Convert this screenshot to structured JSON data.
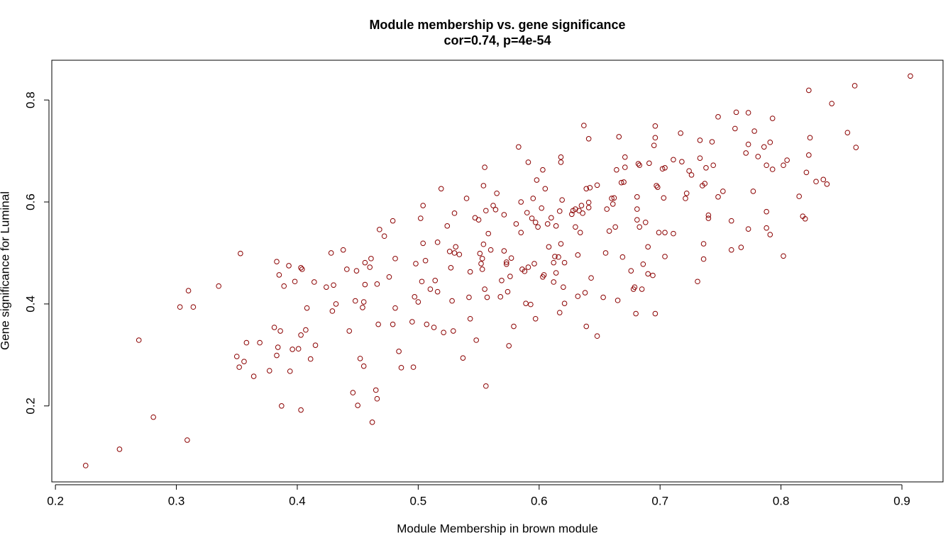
{
  "chart_data": {
    "type": "scatter",
    "title": "Module membership vs. gene significance",
    "subtitle": "cor=0.74, p=4e-54",
    "x_label": "Module Membership in brown module",
    "y_label": "Gene significance for Luminal",
    "color": "#8b0000",
    "xlim": [
      0.197,
      0.934
    ],
    "ylim": [
      0.051,
      0.878
    ],
    "xticks": [
      0.2,
      0.3,
      0.4,
      0.5,
      0.6,
      0.7,
      0.8,
      0.9
    ],
    "yticks": [
      0.2,
      0.4,
      0.6,
      0.8
    ],
    "x": [
      0.225,
      0.253,
      0.269,
      0.281,
      0.303,
      0.309,
      0.31,
      0.314,
      0.335,
      0.35,
      0.352,
      0.353,
      0.356,
      0.358,
      0.364,
      0.369,
      0.377,
      0.381,
      0.383,
      0.383,
      0.384,
      0.385,
      0.386,
      0.387,
      0.389,
      0.393,
      0.394,
      0.396,
      0.398,
      0.401,
      0.403,
      0.403,
      0.403,
      0.404,
      0.407,
      0.408,
      0.411,
      0.414,
      0.415,
      0.424,
      0.428,
      0.429,
      0.43,
      0.432,
      0.438,
      0.441,
      0.443,
      0.446,
      0.448,
      0.449,
      0.45,
      0.452,
      0.454,
      0.455,
      0.455,
      0.456,
      0.456,
      0.46,
      0.461,
      0.462,
      0.465,
      0.466,
      0.466,
      0.467,
      0.468,
      0.472,
      0.476,
      0.479,
      0.479,
      0.481,
      0.481,
      0.484,
      0.486,
      0.495,
      0.496,
      0.497,
      0.498,
      0.5,
      0.502,
      0.503,
      0.504,
      0.504,
      0.506,
      0.507,
      0.51,
      0.513,
      0.514,
      0.516,
      0.516,
      0.519,
      0.521,
      0.524,
      0.526,
      0.527,
      0.528,
      0.529,
      0.53,
      0.53,
      0.531,
      0.534,
      0.537,
      0.54,
      0.542,
      0.543,
      0.543,
      0.547,
      0.548,
      0.55,
      0.551,
      0.552,
      0.553,
      0.553,
      0.554,
      0.554,
      0.555,
      0.555,
      0.556,
      0.556,
      0.557,
      0.558,
      0.56,
      0.562,
      0.564,
      0.565,
      0.568,
      0.569,
      0.571,
      0.571,
      0.573,
      0.573,
      0.574,
      0.575,
      0.576,
      0.577,
      0.579,
      0.581,
      0.583,
      0.585,
      0.585,
      0.586,
      0.588,
      0.589,
      0.59,
      0.591,
      0.591,
      0.593,
      0.594,
      0.595,
      0.596,
      0.597,
      0.597,
      0.598,
      0.599,
      0.602,
      0.603,
      0.603,
      0.604,
      0.605,
      0.607,
      0.608,
      0.61,
      0.612,
      0.612,
      0.613,
      0.614,
      0.614,
      0.616,
      0.617,
      0.617,
      0.618,
      0.618,
      0.618,
      0.619,
      0.62,
      0.621,
      0.621,
      0.627,
      0.628,
      0.63,
      0.63,
      0.632,
      0.632,
      0.633,
      0.634,
      0.635,
      0.636,
      0.637,
      0.638,
      0.639,
      0.639,
      0.641,
      0.641,
      0.641,
      0.642,
      0.643,
      0.648,
      0.648,
      0.653,
      0.655,
      0.656,
      0.658,
      0.66,
      0.661,
      0.662,
      0.663,
      0.664,
      0.665,
      0.666,
      0.668,
      0.669,
      0.67,
      0.671,
      0.671,
      0.676,
      0.678,
      0.679,
      0.68,
      0.681,
      0.681,
      0.681,
      0.682,
      0.683,
      0.683,
      0.685,
      0.686,
      0.688,
      0.69,
      0.69,
      0.691,
      0.694,
      0.695,
      0.696,
      0.696,
      0.696,
      0.697,
      0.698,
      0.699,
      0.702,
      0.703,
      0.704,
      0.704,
      0.704,
      0.711,
      0.711,
      0.717,
      0.718,
      0.721,
      0.722,
      0.724,
      0.726,
      0.731,
      0.733,
      0.733,
      0.735,
      0.736,
      0.736,
      0.737,
      0.738,
      0.74,
      0.74,
      0.743,
      0.744,
      0.748,
      0.748,
      0.752,
      0.759,
      0.759,
      0.762,
      0.763,
      0.767,
      0.771,
      0.773,
      0.773,
      0.773,
      0.777,
      0.778,
      0.781,
      0.786,
      0.788,
      0.788,
      0.788,
      0.791,
      0.791,
      0.793,
      0.793,
      0.802,
      0.802,
      0.805,
      0.815,
      0.818,
      0.82,
      0.821,
      0.823,
      0.823,
      0.824,
      0.829,
      0.835,
      0.838,
      0.842,
      0.855,
      0.861,
      0.862,
      0.907
    ],
    "y": [
      0.083,
      0.115,
      0.329,
      0.178,
      0.394,
      0.133,
      0.426,
      0.394,
      0.435,
      0.297,
      0.276,
      0.499,
      0.287,
      0.324,
      0.258,
      0.324,
      0.269,
      0.354,
      0.483,
      0.299,
      0.315,
      0.457,
      0.347,
      0.2,
      0.435,
      0.475,
      0.268,
      0.311,
      0.444,
      0.312,
      0.471,
      0.339,
      0.192,
      0.468,
      0.349,
      0.392,
      0.292,
      0.443,
      0.319,
      0.433,
      0.5,
      0.386,
      0.437,
      0.4,
      0.506,
      0.468,
      0.347,
      0.226,
      0.406,
      0.465,
      0.201,
      0.293,
      0.393,
      0.278,
      0.404,
      0.438,
      0.481,
      0.472,
      0.489,
      0.168,
      0.231,
      0.214,
      0.439,
      0.36,
      0.546,
      0.533,
      0.453,
      0.36,
      0.563,
      0.489,
      0.392,
      0.307,
      0.275,
      0.365,
      0.276,
      0.414,
      0.479,
      0.404,
      0.568,
      0.444,
      0.593,
      0.519,
      0.485,
      0.36,
      0.429,
      0.354,
      0.446,
      0.521,
      0.424,
      0.626,
      0.344,
      0.553,
      0.503,
      0.471,
      0.406,
      0.347,
      0.5,
      0.578,
      0.512,
      0.497,
      0.294,
      0.607,
      0.413,
      0.463,
      0.371,
      0.569,
      0.329,
      0.565,
      0.499,
      0.479,
      0.489,
      0.468,
      0.517,
      0.632,
      0.429,
      0.668,
      0.239,
      0.583,
      0.413,
      0.538,
      0.506,
      0.593,
      0.585,
      0.617,
      0.414,
      0.446,
      0.504,
      0.575,
      0.482,
      0.478,
      0.424,
      0.318,
      0.454,
      0.49,
      0.356,
      0.557,
      0.708,
      0.54,
      0.6,
      0.468,
      0.464,
      0.401,
      0.579,
      0.472,
      0.678,
      0.399,
      0.568,
      0.607,
      0.479,
      0.56,
      0.371,
      0.643,
      0.551,
      0.588,
      0.453,
      0.663,
      0.457,
      0.626,
      0.557,
      0.512,
      0.569,
      0.481,
      0.443,
      0.493,
      0.553,
      0.461,
      0.492,
      0.383,
      0.582,
      0.688,
      0.678,
      0.518,
      0.604,
      0.433,
      0.481,
      0.401,
      0.576,
      0.583,
      0.551,
      0.586,
      0.496,
      0.415,
      0.583,
      0.54,
      0.593,
      0.578,
      0.75,
      0.422,
      0.626,
      0.356,
      0.724,
      0.599,
      0.589,
      0.628,
      0.451,
      0.337,
      0.633,
      0.413,
      0.5,
      0.586,
      0.543,
      0.607,
      0.596,
      0.608,
      0.551,
      0.663,
      0.407,
      0.728,
      0.638,
      0.492,
      0.639,
      0.688,
      0.668,
      0.465,
      0.429,
      0.433,
      0.381,
      0.586,
      0.61,
      0.565,
      0.675,
      0.672,
      0.551,
      0.429,
      0.478,
      0.56,
      0.459,
      0.512,
      0.676,
      0.456,
      0.711,
      0.749,
      0.381,
      0.726,
      0.632,
      0.629,
      0.54,
      0.665,
      0.608,
      0.54,
      0.667,
      0.493,
      0.538,
      0.683,
      0.735,
      0.679,
      0.607,
      0.617,
      0.661,
      0.653,
      0.444,
      0.721,
      0.686,
      0.632,
      0.488,
      0.518,
      0.636,
      0.667,
      0.568,
      0.574,
      0.718,
      0.672,
      0.767,
      0.61,
      0.621,
      0.563,
      0.506,
      0.744,
      0.776,
      0.511,
      0.696,
      0.713,
      0.547,
      0.775,
      0.621,
      0.739,
      0.689,
      0.708,
      0.672,
      0.581,
      0.549,
      0.536,
      0.717,
      0.764,
      0.664,
      0.494,
      0.672,
      0.682,
      0.611,
      0.572,
      0.567,
      0.658,
      0.819,
      0.692,
      0.726,
      0.64,
      0.644,
      0.635,
      0.793,
      0.736,
      0.828,
      0.707,
      0.847
    ]
  }
}
